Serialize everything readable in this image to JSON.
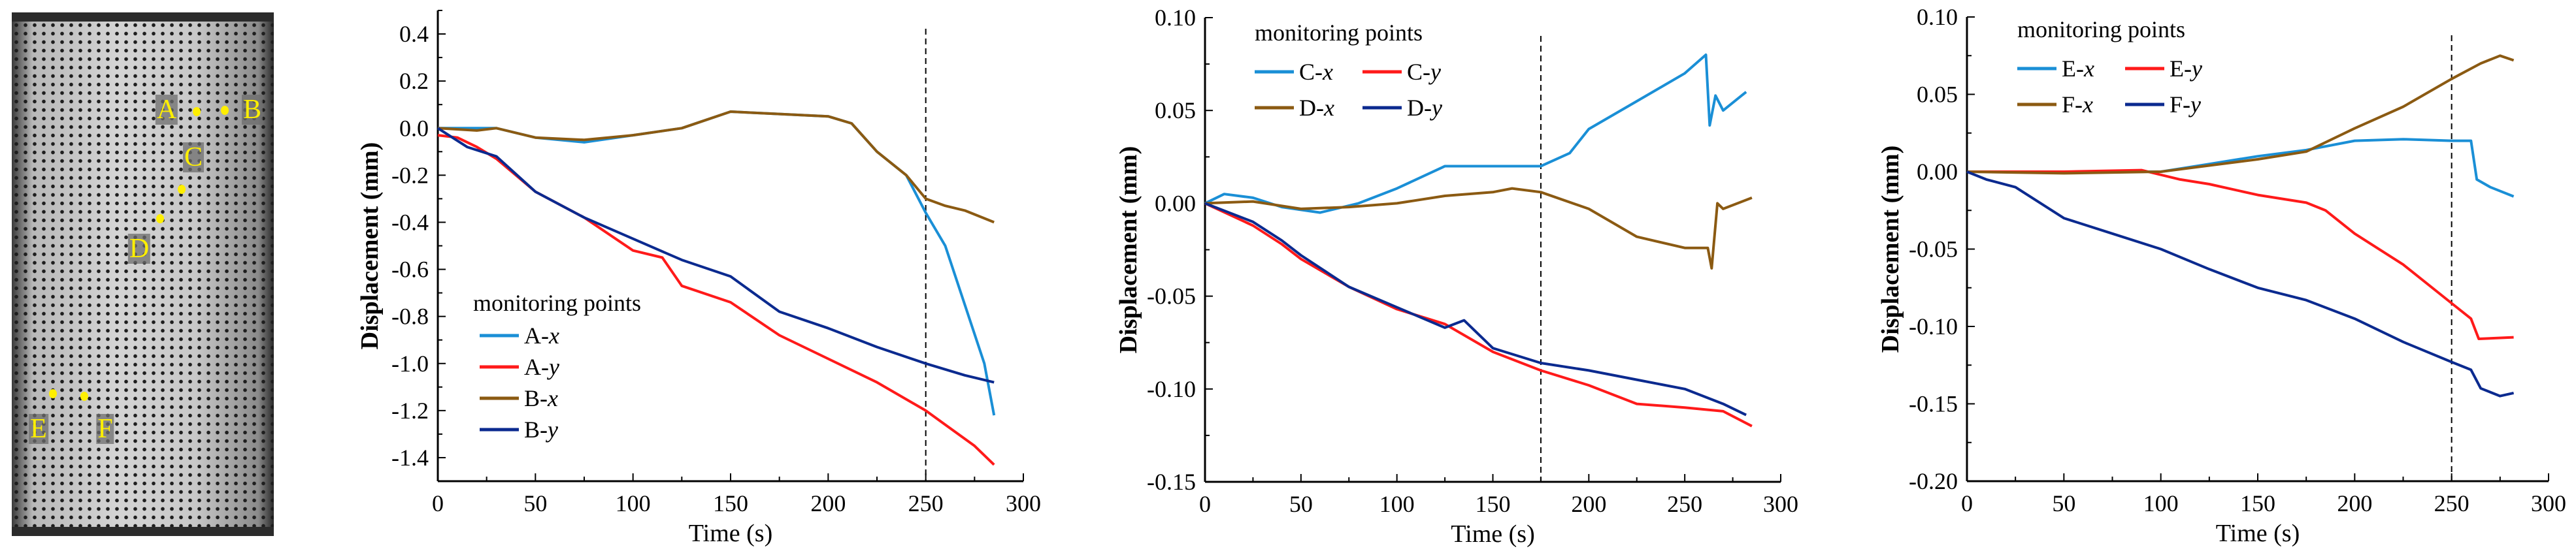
{
  "photo": {
    "points": [
      {
        "label": "A",
        "color": "#ffef00"
      },
      {
        "label": "B",
        "color": "#ffef00"
      },
      {
        "label": "C",
        "color": "#ffef00"
      },
      {
        "label": "D",
        "color": "#ffef00"
      },
      {
        "label": "E",
        "color": "#ffef00"
      },
      {
        "label": "F",
        "color": "#ffef00"
      }
    ]
  },
  "chart_data": [
    {
      "type": "line",
      "xlabel": "Time (s)",
      "ylabel": "Displacement (mm)",
      "xlim": [
        0,
        300
      ],
      "ylim": [
        -1.5,
        0.5
      ],
      "xticks": [
        "0",
        "50",
        "100",
        "150",
        "200",
        "250",
        "300"
      ],
      "yticks": [
        "0.4",
        "0.2",
        "0.0",
        "-0.2",
        "-0.4",
        "-0.6",
        "-0.8",
        "-1.0",
        "-1.2",
        "-1.4"
      ],
      "grid": false,
      "legend_title": "monitoring points",
      "legend_placement": "bottom-left",
      "reference_line_x": 250,
      "series": [
        {
          "name": "A-x",
          "color": "#1a8fd6",
          "x": [
            0,
            20,
            30,
            50,
            75,
            100,
            125,
            150,
            175,
            200,
            212,
            225,
            240,
            250,
            260,
            270,
            280,
            285
          ],
          "y": [
            0.0,
            0.0,
            0.0,
            -0.04,
            -0.06,
            -0.03,
            0.0,
            0.07,
            0.06,
            0.05,
            0.02,
            -0.1,
            -0.2,
            -0.36,
            -0.5,
            -0.75,
            -1.0,
            -1.22
          ]
        },
        {
          "name": "A-y",
          "color": "#ff1a1a",
          "x": [
            0,
            10,
            20,
            30,
            50,
            75,
            100,
            115,
            125,
            150,
            175,
            200,
            225,
            250,
            260,
            275,
            285
          ],
          "y": [
            -0.03,
            -0.04,
            -0.08,
            -0.13,
            -0.27,
            -0.38,
            -0.52,
            -0.55,
            -0.67,
            -0.74,
            -0.88,
            -0.98,
            -1.08,
            -1.2,
            -1.26,
            -1.35,
            -1.43
          ]
        },
        {
          "name": "B-x",
          "color": "#8b5a12",
          "x": [
            0,
            20,
            30,
            50,
            75,
            100,
            125,
            150,
            175,
            200,
            212,
            225,
            240,
            250,
            260,
            270,
            285
          ],
          "y": [
            0.0,
            -0.01,
            0.0,
            -0.04,
            -0.05,
            -0.03,
            0.0,
            0.07,
            0.06,
            0.05,
            0.02,
            -0.1,
            -0.2,
            -0.3,
            -0.33,
            -0.35,
            -0.4
          ]
        },
        {
          "name": "B-y",
          "color": "#0b2a8f",
          "x": [
            0,
            15,
            30,
            50,
            75,
            100,
            125,
            150,
            175,
            200,
            225,
            250,
            270,
            285
          ],
          "y": [
            0.0,
            -0.08,
            -0.12,
            -0.27,
            -0.38,
            -0.47,
            -0.56,
            -0.63,
            -0.78,
            -0.85,
            -0.93,
            -1.0,
            -1.05,
            -1.08
          ]
        }
      ]
    },
    {
      "type": "line",
      "xlabel": "Time (s)",
      "ylabel": "Displacement (mm)",
      "xlim": [
        0,
        300
      ],
      "ylim": [
        -0.15,
        0.1
      ],
      "xticks": [
        "0",
        "50",
        "100",
        "150",
        "200",
        "250",
        "300"
      ],
      "yticks": [
        "0.10",
        "0.05",
        "0.00",
        "-0.05",
        "-0.10",
        "-0.15"
      ],
      "grid": false,
      "legend_title": "monitoring points",
      "legend_placement": "top-left",
      "reference_line_x": 175,
      "series": [
        {
          "name": "C-x",
          "color": "#1a8fd6",
          "x": [
            0,
            10,
            25,
            40,
            60,
            80,
            100,
            125,
            150,
            175,
            190,
            200,
            225,
            250,
            261,
            263,
            266,
            270,
            282
          ],
          "y": [
            0,
            0.005,
            0.003,
            -0.002,
            -0.005,
            0,
            0.008,
            0.02,
            0.02,
            0.02,
            0.027,
            0.04,
            0.055,
            0.07,
            0.08,
            0.042,
            0.058,
            0.05,
            0.06
          ]
        },
        {
          "name": "C-y",
          "color": "#ff1a1a",
          "x": [
            0,
            25,
            40,
            50,
            75,
            100,
            125,
            150,
            175,
            200,
            225,
            250,
            270,
            285
          ],
          "y": [
            0,
            -0.012,
            -0.022,
            -0.03,
            -0.045,
            -0.057,
            -0.065,
            -0.08,
            -0.09,
            -0.098,
            -0.108,
            -0.11,
            -0.112,
            -0.12
          ]
        },
        {
          "name": "D-x",
          "color": "#8b5a12",
          "x": [
            0,
            25,
            50,
            75,
            100,
            125,
            150,
            160,
            175,
            200,
            225,
            250,
            262,
            264,
            267,
            270,
            285
          ],
          "y": [
            0,
            0.001,
            -0.003,
            -0.002,
            0,
            0.004,
            0.006,
            0.008,
            0.006,
            -0.003,
            -0.018,
            -0.024,
            -0.024,
            -0.035,
            0,
            -0.003,
            0.003
          ]
        },
        {
          "name": "D-y",
          "color": "#0b2a8f",
          "x": [
            0,
            25,
            40,
            50,
            75,
            100,
            125,
            135,
            150,
            175,
            200,
            225,
            250,
            270,
            282
          ],
          "y": [
            0,
            -0.01,
            -0.02,
            -0.028,
            -0.045,
            -0.056,
            -0.067,
            -0.063,
            -0.078,
            -0.086,
            -0.09,
            -0.095,
            -0.1,
            -0.108,
            -0.114
          ]
        }
      ]
    },
    {
      "type": "line",
      "xlabel": "Time (s)",
      "ylabel": "Displacement (mm)",
      "xlim": [
        0,
        300
      ],
      "ylim": [
        -0.2,
        0.1
      ],
      "xticks": [
        "0",
        "50",
        "100",
        "150",
        "200",
        "250",
        "300"
      ],
      "yticks": [
        "0.10",
        "0.05",
        "0.00",
        "-0.05",
        "-0.10",
        "-0.15",
        "-0.20"
      ],
      "grid": false,
      "legend_title": "monitoring points",
      "legend_placement": "top-left",
      "reference_line_x": 250,
      "series": [
        {
          "name": "E-x",
          "color": "#1a8fd6",
          "x": [
            0,
            50,
            100,
            125,
            150,
            175,
            200,
            225,
            250,
            260,
            263,
            270,
            282
          ],
          "y": [
            0,
            0,
            0,
            0.005,
            0.01,
            0.014,
            0.02,
            0.021,
            0.02,
            0.02,
            -0.005,
            -0.01,
            -0.016
          ]
        },
        {
          "name": "E-y",
          "color": "#ff1a1a",
          "x": [
            0,
            50,
            90,
            110,
            125,
            150,
            175,
            185,
            200,
            225,
            250,
            260,
            264,
            282
          ],
          "y": [
            0,
            0,
            0.001,
            -0.005,
            -0.008,
            -0.015,
            -0.02,
            -0.025,
            -0.04,
            -0.06,
            -0.085,
            -0.095,
            -0.108,
            -0.107
          ]
        },
        {
          "name": "F-x",
          "color": "#8b5a12",
          "x": [
            0,
            50,
            100,
            125,
            150,
            175,
            200,
            225,
            250,
            265,
            275,
            282
          ],
          "y": [
            0,
            -0.001,
            0,
            0.004,
            0.008,
            0.013,
            0.028,
            0.042,
            0.06,
            0.07,
            0.075,
            0.072
          ]
        },
        {
          "name": "F-y",
          "color": "#0b2a8f",
          "x": [
            0,
            10,
            25,
            50,
            75,
            100,
            125,
            150,
            175,
            200,
            225,
            250,
            260,
            265,
            275,
            282
          ],
          "y": [
            0,
            -0.005,
            -0.01,
            -0.03,
            -0.04,
            -0.05,
            -0.063,
            -0.075,
            -0.083,
            -0.095,
            -0.11,
            -0.123,
            -0.128,
            -0.14,
            -0.145,
            -0.143
          ]
        }
      ]
    }
  ]
}
